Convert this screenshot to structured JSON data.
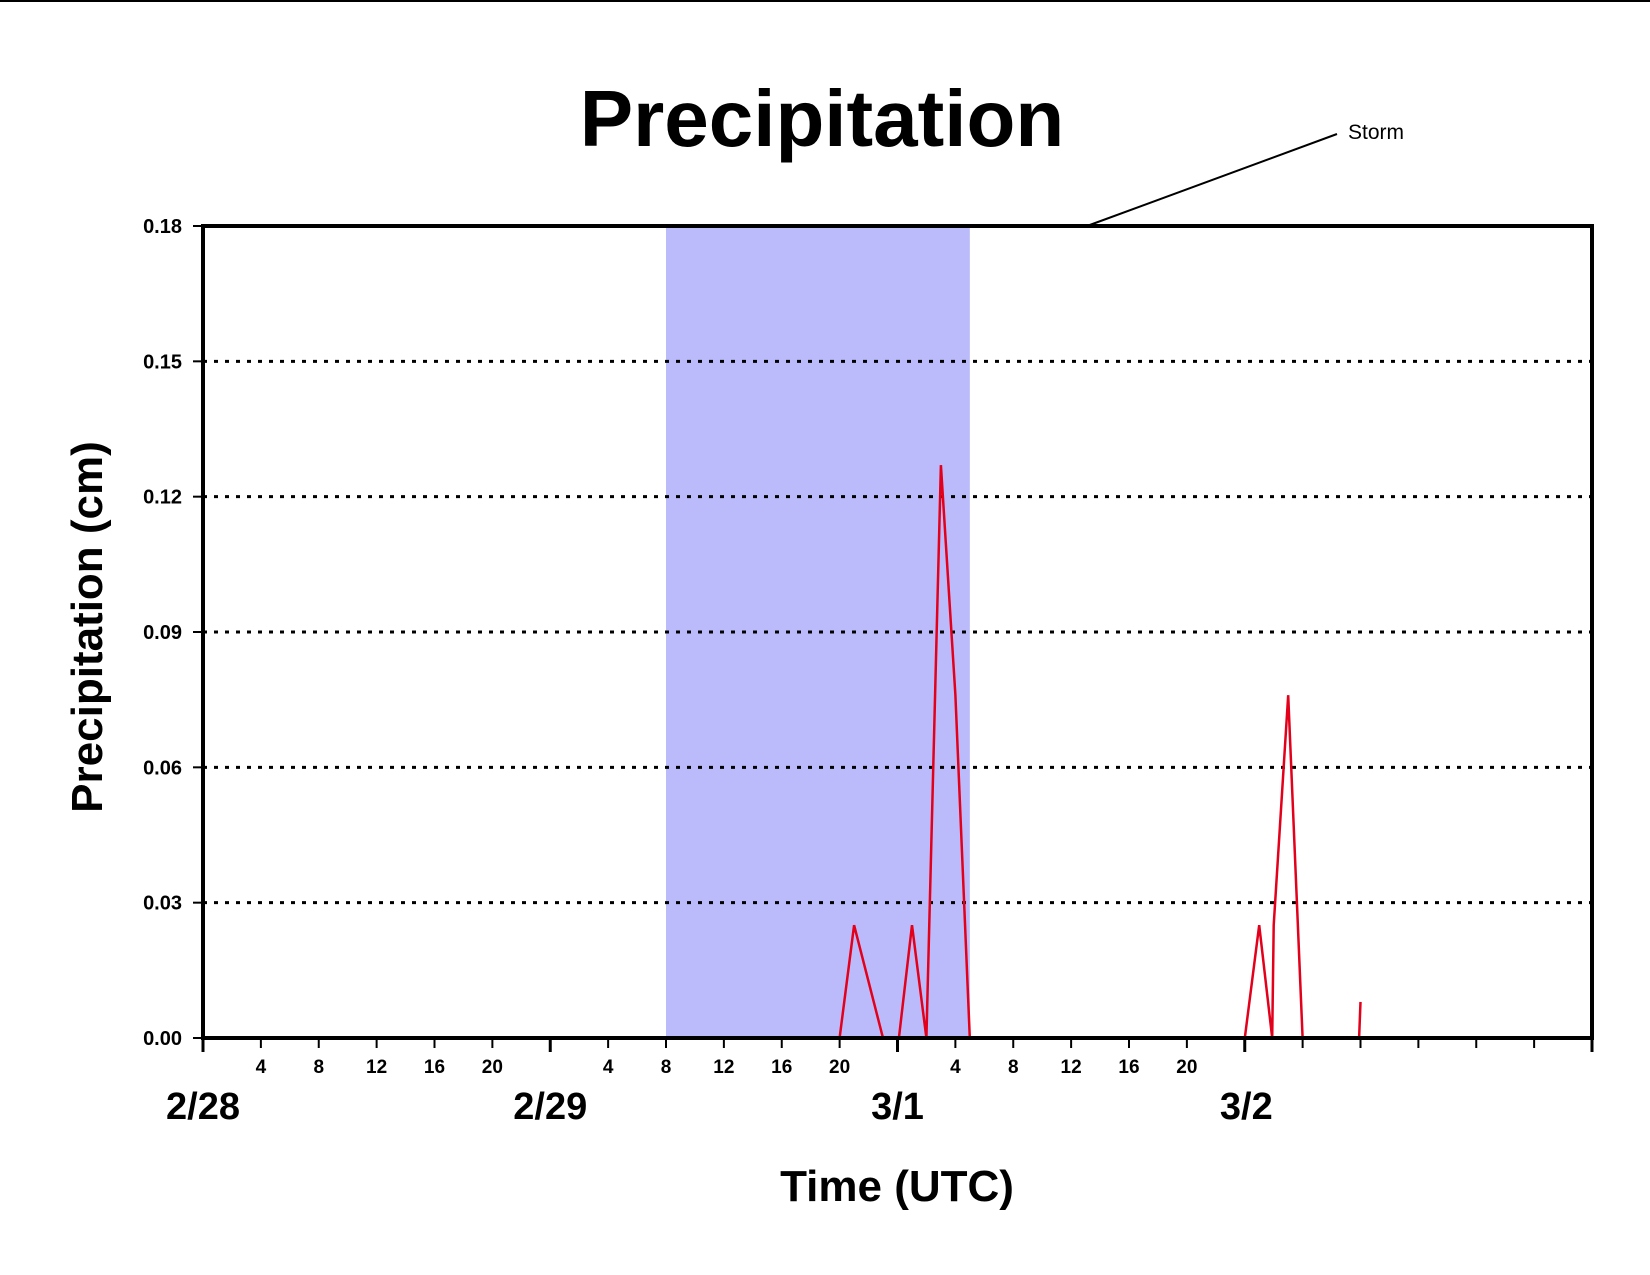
{
  "chart_data": {
    "type": "line",
    "title": "Precipitation",
    "xlabel": "Time (UTC)",
    "ylabel": "Precipitation (cm)",
    "ylim": [
      0,
      0.18
    ],
    "yticks": [
      "0.00",
      "0.03",
      "0.06",
      "0.09",
      "0.12",
      "0.15",
      "0.18"
    ],
    "xlim": [
      "2/28 00",
      "3/2 00"
    ],
    "x_hour_ticks": [
      "4",
      "8",
      "12",
      "16",
      "20",
      "4",
      "8",
      "12",
      "16",
      "20",
      "4",
      "8",
      "12",
      "16",
      "20"
    ],
    "x_date_ticks": [
      "2/28",
      "2/29",
      "3/1",
      "3/2"
    ],
    "grid": "horizontal dotted",
    "series": [
      {
        "color": "#e3001b",
        "x_hours": [
          0,
          44,
          45,
          47,
          48,
          48.1,
          49,
          50,
          51,
          52,
          53,
          54,
          72,
          73,
          73.9,
          74,
          75,
          76,
          78,
          79.9,
          80
        ],
        "y": [
          0,
          0,
          0.025,
          0,
          0,
          0,
          0.025,
          0,
          0.127,
          0.076,
          0,
          0,
          0,
          0.025,
          0,
          0.025,
          0.076,
          0,
          0,
          0,
          0.008
        ]
      }
    ],
    "annotations": [
      {
        "text": "Storm",
        "span_hours": [
          32,
          53
        ],
        "fill": "#bbbbfb"
      }
    ]
  }
}
